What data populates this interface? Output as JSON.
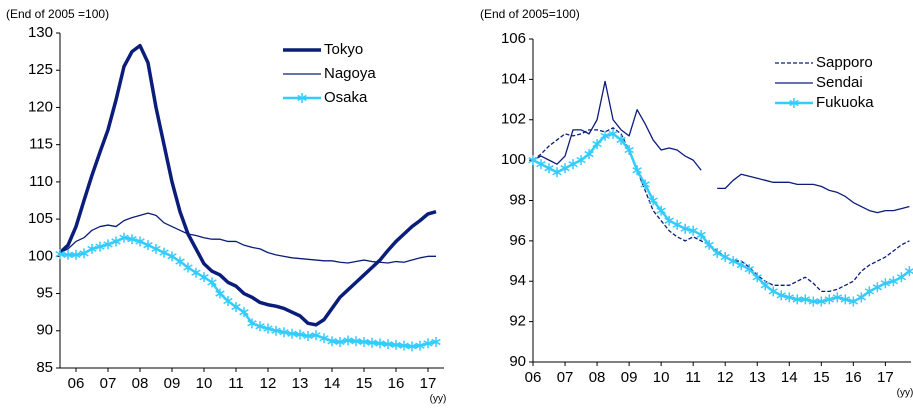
{
  "chart_data": [
    {
      "type": "line",
      "title": "(End of 2005 =100)",
      "xlabel": "(yy)",
      "x": [
        6,
        6.25,
        6.5,
        6.75,
        7,
        7.25,
        7.5,
        7.75,
        8,
        8.25,
        8.5,
        8.75,
        9,
        9.25,
        9.5,
        9.75,
        10,
        10.25,
        10.5,
        10.75,
        11,
        11.25,
        11.5,
        11.75,
        12,
        12.25,
        12.5,
        12.75,
        13,
        13.25,
        13.5,
        13.75,
        14,
        14.25,
        14.5,
        14.75,
        15,
        15.25,
        15.5,
        15.75,
        16,
        16.25,
        16.5,
        16.75,
        17,
        17.25,
        17.5,
        17.75
      ],
      "xlim": [
        6,
        18
      ],
      "xticks": [
        {
          "value": 6.5,
          "label": "06"
        },
        {
          "value": 7.5,
          "label": "07"
        },
        {
          "value": 8.5,
          "label": "08"
        },
        {
          "value": 9.5,
          "label": "09"
        },
        {
          "value": 10.5,
          "label": "10"
        },
        {
          "value": 11.5,
          "label": "11"
        },
        {
          "value": 12.5,
          "label": "12"
        },
        {
          "value": 13.5,
          "label": "13"
        },
        {
          "value": 14.5,
          "label": "14"
        },
        {
          "value": 15.5,
          "label": "15"
        },
        {
          "value": 16.5,
          "label": "16"
        },
        {
          "value": 17.5,
          "label": "17"
        }
      ],
      "ylim": [
        85,
        130
      ],
      "yticks": [
        85,
        90,
        95,
        100,
        105,
        110,
        115,
        120,
        125,
        130
      ],
      "legend": "upper right",
      "series": [
        {
          "name": "Tokyo",
          "color": "#0b1d7a",
          "width": 3.5,
          "values": [
            100.5,
            101.5,
            104,
            107.5,
            110.9,
            114,
            117,
            121,
            125.5,
            127.5,
            128.3,
            126,
            120,
            115,
            110,
            106,
            103,
            101,
            99,
            98,
            97.5,
            96.5,
            96,
            95,
            94.5,
            93.8,
            93.5,
            93.3,
            93,
            92.5,
            92,
            91,
            90.8,
            91.5,
            93,
            94.5,
            95.5,
            96.5,
            97.5,
            98.5,
            99.5,
            100.8,
            102,
            103,
            104,
            104.8,
            105.7,
            106
          ]
        },
        {
          "name": "Nagoya",
          "color": "#0b1d7a",
          "width": 1.3,
          "values": [
            100.5,
            101,
            102,
            102.5,
            103.5,
            104,
            104.2,
            104,
            104.8,
            105.2,
            105.5,
            105.8,
            105.5,
            104.5,
            104,
            103.5,
            103,
            102.8,
            102.5,
            102.3,
            102.3,
            102,
            102,
            101.5,
            101.2,
            101,
            100.5,
            100.2,
            100,
            99.8,
            99.7,
            99.6,
            99.5,
            99.4,
            99.4,
            99.2,
            99.1,
            99.3,
            99.5,
            99.3,
            99.2,
            99.1,
            99.3,
            99.2,
            99.5,
            99.8,
            100,
            100
          ]
        },
        {
          "name": "Osaka",
          "color": "#33ccff",
          "width": 2.5,
          "marker": "asterisk",
          "values": [
            100.3,
            100.2,
            100.2,
            100.4,
            101,
            101.3,
            101.6,
            102,
            102.5,
            102.3,
            102,
            101.5,
            101,
            100.5,
            100,
            99.3,
            98.5,
            97.8,
            97.2,
            96.5,
            95,
            94,
            93.2,
            92.5,
            91,
            90.6,
            90.3,
            90,
            89.8,
            89.6,
            89.5,
            89.3,
            89.4,
            89,
            88.6,
            88.5,
            88.7,
            88.6,
            88.5,
            88.4,
            88.3,
            88.2,
            88.1,
            88,
            87.9,
            88,
            88.3,
            88.5
          ]
        }
      ]
    },
    {
      "type": "line",
      "title": "(End of 2005=100)",
      "xlabel": "(yy)",
      "x": [
        6,
        6.25,
        6.5,
        6.75,
        7,
        7.25,
        7.5,
        7.75,
        8,
        8.25,
        8.5,
        8.75,
        9,
        9.25,
        9.5,
        9.75,
        10,
        10.25,
        10.5,
        10.75,
        11,
        11.25,
        11.5,
        11.75,
        12,
        12.25,
        12.5,
        12.75,
        13,
        13.25,
        13.5,
        13.75,
        14,
        14.25,
        14.5,
        14.75,
        15,
        15.25,
        15.5,
        15.75,
        16,
        16.25,
        16.5,
        16.75,
        17,
        17.25,
        17.5,
        17.75
      ],
      "xlim": [
        6,
        17.8
      ],
      "xticks": [
        {
          "value": 6,
          "label": "06"
        },
        {
          "value": 7,
          "label": "07"
        },
        {
          "value": 8,
          "label": "08"
        },
        {
          "value": 9,
          "label": "09"
        },
        {
          "value": 10,
          "label": "10"
        },
        {
          "value": 11,
          "label": "11"
        },
        {
          "value": 12,
          "label": "12"
        },
        {
          "value": 13,
          "label": "13"
        },
        {
          "value": 14,
          "label": "14"
        },
        {
          "value": 15,
          "label": "15"
        },
        {
          "value": 16,
          "label": "16"
        },
        {
          "value": 17,
          "label": "17"
        }
      ],
      "ylim": [
        90,
        106
      ],
      "yticks": [
        90,
        92,
        94,
        96,
        98,
        100,
        102,
        104,
        106
      ],
      "legend": "upper right",
      "series": [
        {
          "name": "Sapporo",
          "color": "#0b1d7a",
          "width": 1.3,
          "dash": "dashed",
          "values": [
            100,
            100.3,
            100.7,
            101,
            101.3,
            101.2,
            101.3,
            101.5,
            101.5,
            101.4,
            101.6,
            101.3,
            100.5,
            99.5,
            98.5,
            97.5,
            97,
            96.5,
            96.2,
            96,
            96.2,
            96,
            95.8,
            95.5,
            95.2,
            95,
            95,
            94.7,
            94.3,
            94,
            93.8,
            93.8,
            93.8,
            94,
            94.2,
            93.9,
            93.5,
            93.5,
            93.6,
            93.8,
            94,
            94.5,
            94.8,
            95,
            95.2,
            95.5,
            95.8,
            96
          ]
        },
        {
          "name": "Sendai",
          "color": "#0b1d7a",
          "width": 1.3,
          "values": [
            100,
            100.2,
            100,
            99.8,
            100.2,
            101.5,
            101.5,
            101.3,
            102,
            103.9,
            102,
            101.5,
            101.2,
            102.5,
            101.8,
            101,
            100.5,
            100.6,
            100.5,
            100.2,
            100,
            99.5,
            null,
            98.6,
            98.6,
            99,
            99.3,
            99.2,
            99.1,
            99,
            98.9,
            98.9,
            98.9,
            98.8,
            98.8,
            98.8,
            98.7,
            98.5,
            98.4,
            98.2,
            97.9,
            97.7,
            97.5,
            97.4,
            97.5,
            97.5,
            97.6,
            97.7
          ]
        },
        {
          "name": "Fukuoka",
          "color": "#33ccff",
          "width": 2.5,
          "marker": "asterisk",
          "values": [
            100,
            99.8,
            99.6,
            99.4,
            99.6,
            99.8,
            100,
            100.3,
            100.8,
            101.2,
            101.3,
            101,
            100.5,
            99.5,
            98.8,
            98,
            97.5,
            97,
            96.8,
            96.6,
            96.5,
            96.3,
            95.8,
            95.4,
            95.2,
            95,
            94.8,
            94.6,
            94.2,
            93.8,
            93.5,
            93.3,
            93.2,
            93.1,
            93.1,
            93,
            93,
            93.1,
            93.2,
            93.1,
            93,
            93.2,
            93.5,
            93.7,
            93.9,
            94,
            94.2,
            94.5
          ]
        }
      ]
    }
  ]
}
